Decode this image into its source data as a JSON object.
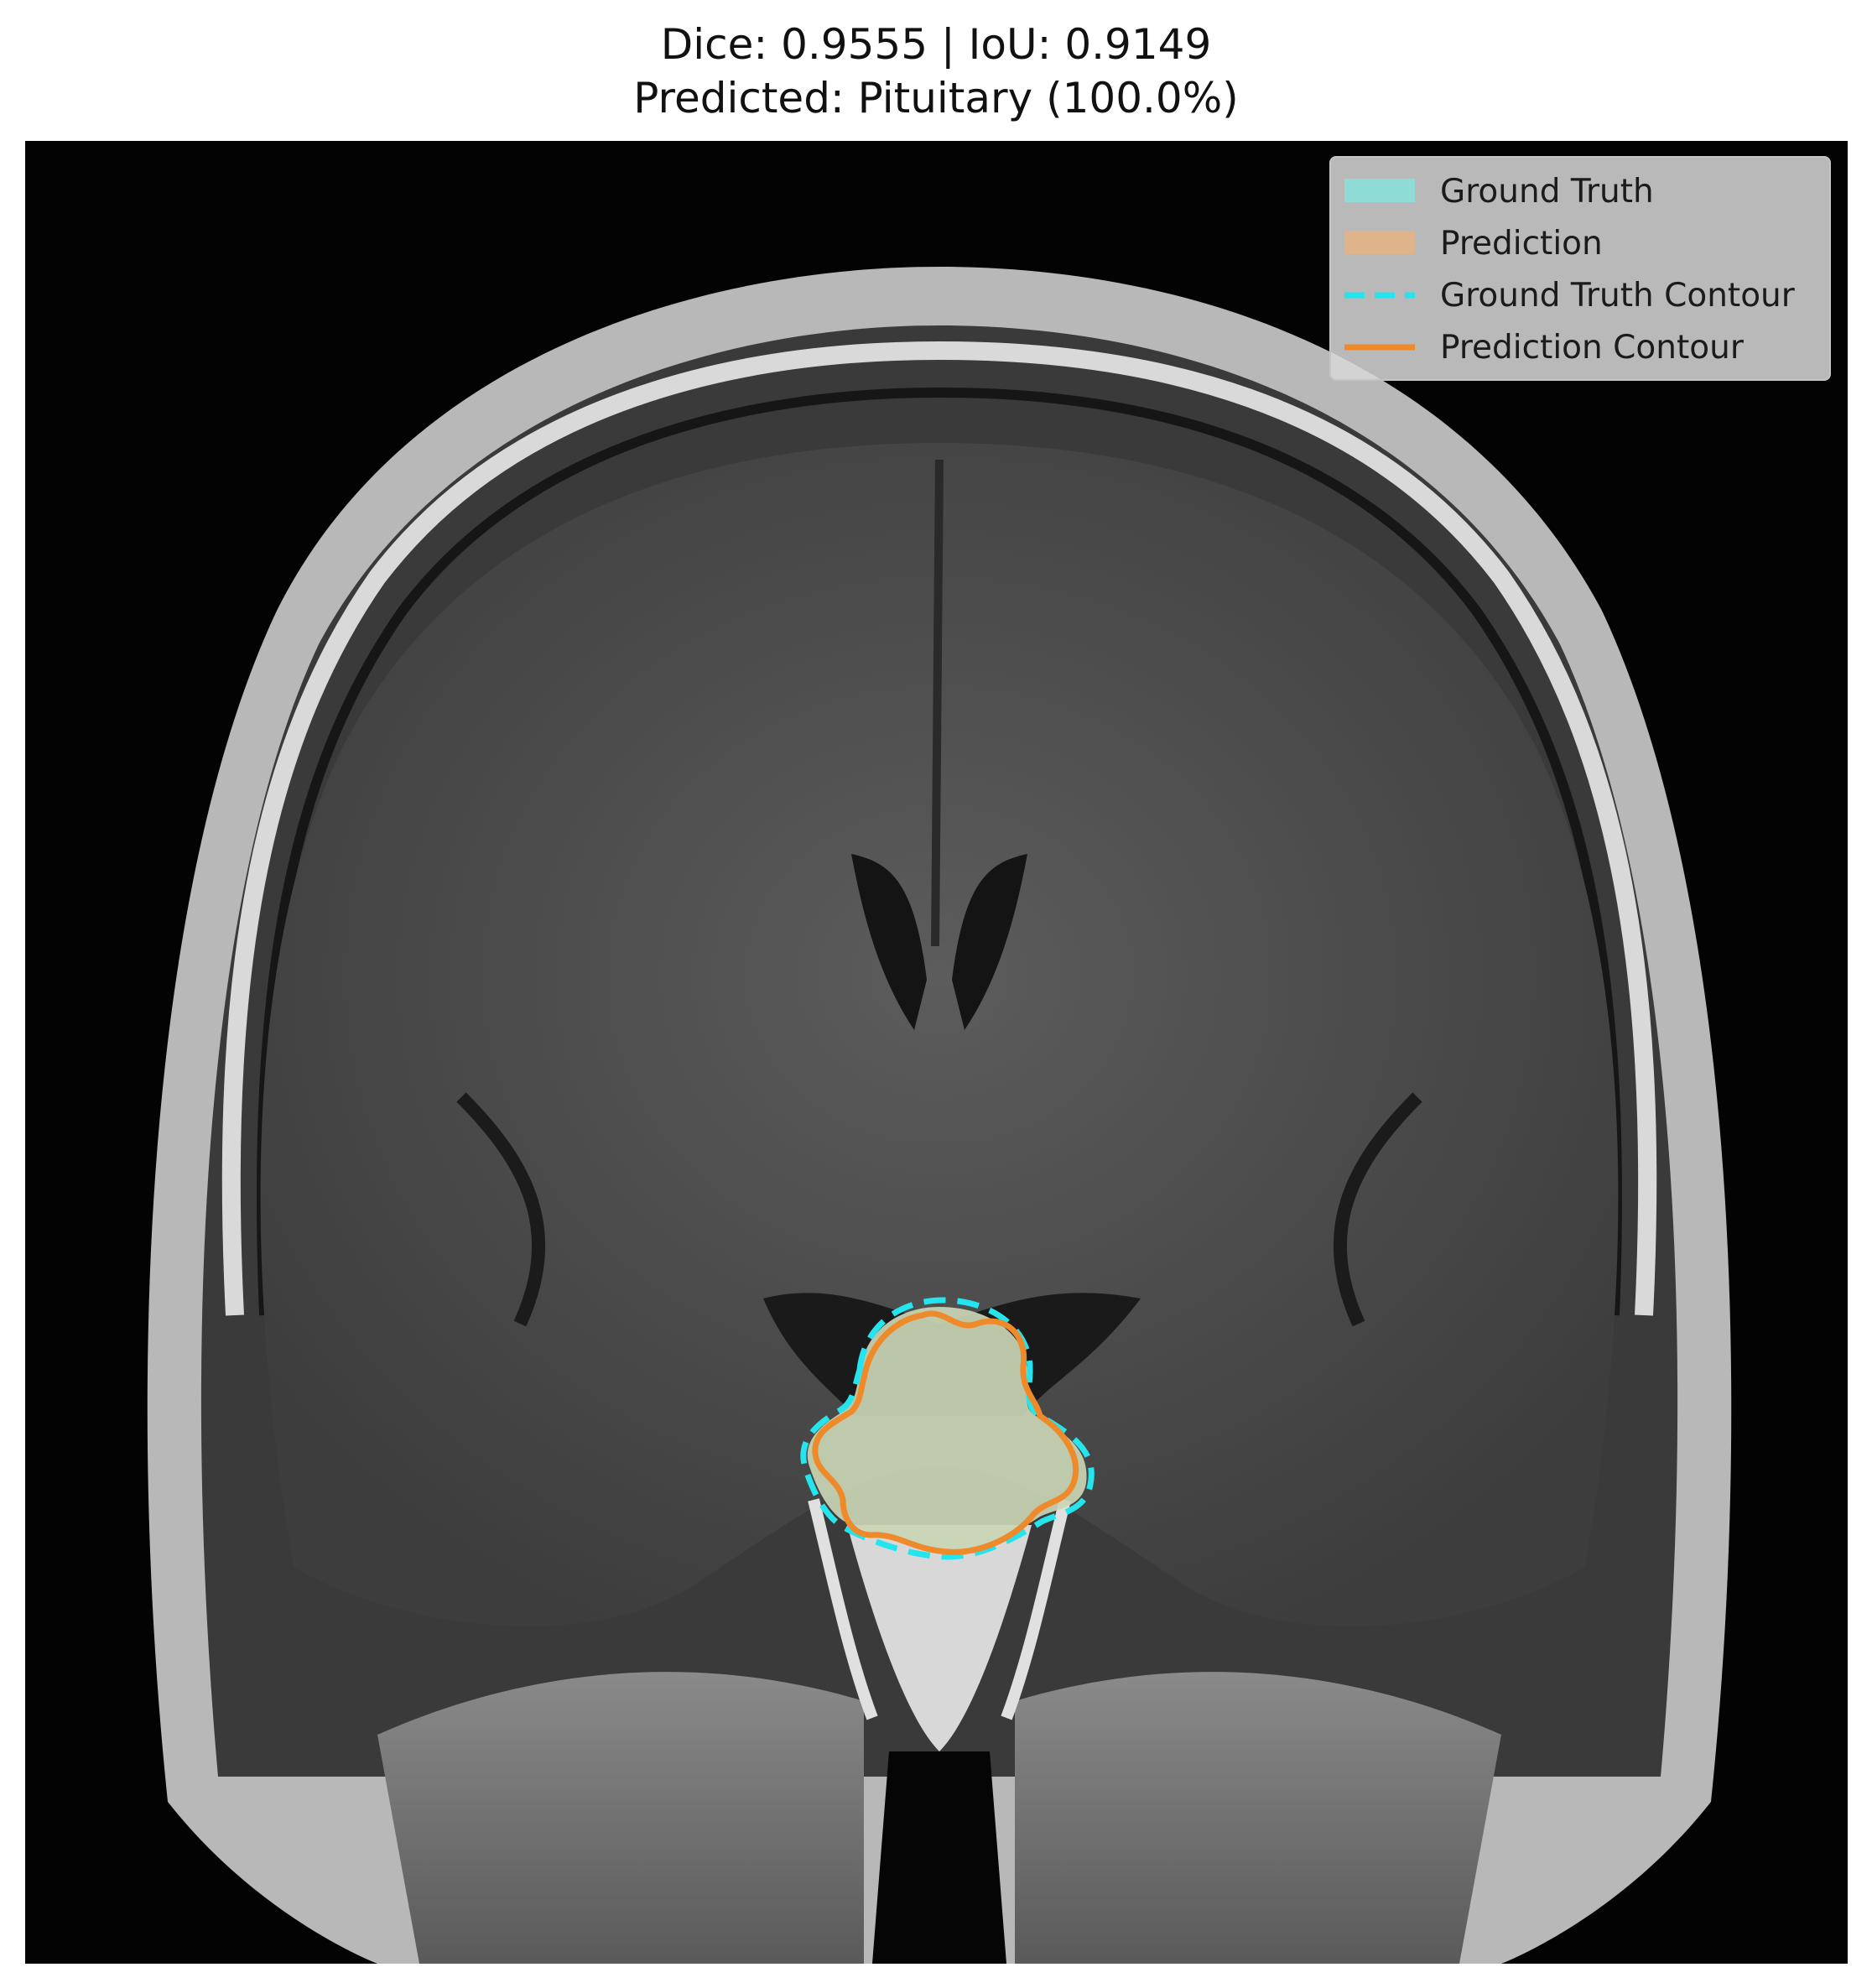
{
  "figure": {
    "title_line1": "Dice: 0.9555 | IoU: 0.9149",
    "title_line2": "Predicted: Pituitary (100.0%)"
  },
  "image": {
    "description_icon": "coronal-brain-mri-icon"
  },
  "legend": {
    "items": [
      {
        "label": "Ground Truth",
        "kind": "patch",
        "color": "#8fdcd6"
      },
      {
        "label": "Prediction",
        "kind": "patch",
        "color": "#e0b48a"
      },
      {
        "label": "Ground Truth Contour",
        "kind": "dashed-line",
        "color": "#24e4ee"
      },
      {
        "label": "Prediction Contour",
        "kind": "line",
        "color": "#ef8a2a"
      }
    ]
  },
  "colors": {
    "overlay_fill": "#c9d6b4",
    "ground_truth_contour": "#24e4ee",
    "prediction_contour": "#ef8a2a"
  }
}
